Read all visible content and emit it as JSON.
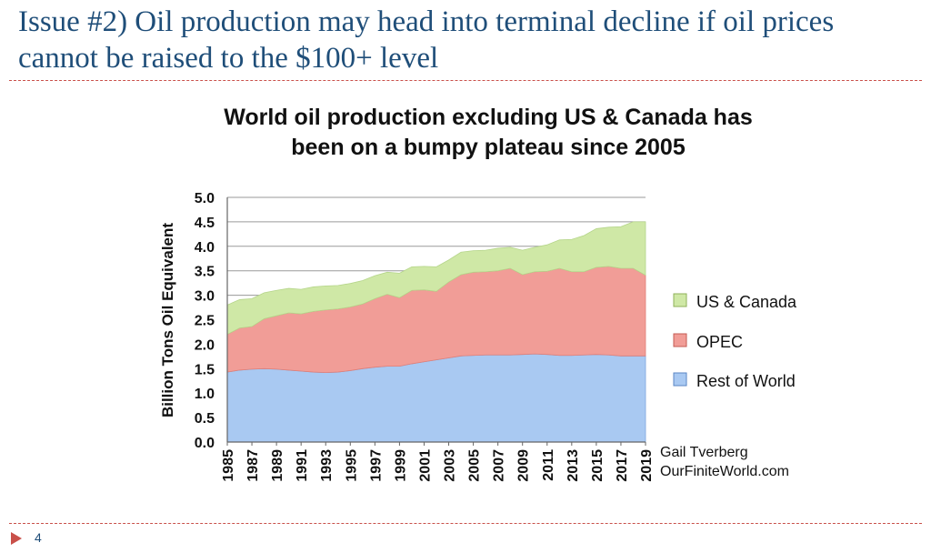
{
  "slide": {
    "title": "Issue #2) Oil production may head into terminal decline if oil prices cannot be raised to the $100+ level",
    "page_number": "4",
    "credit_line1": "Gail Tverberg",
    "credit_line2": "OurFiniteWorld.com"
  },
  "colors": {
    "title": "#1f4e79",
    "rule": "#c9504a",
    "rest_of_world": "#a9c9f2",
    "opec": "#f19d97",
    "us_canada": "#cfe8a6"
  },
  "chart_data": {
    "type": "area",
    "stacked": true,
    "title": "World oil production excluding US & Canada has been on a bumpy plateau since 2005",
    "title_lines": [
      "World oil production excluding US & Canada has",
      "been on a bumpy plateau since 2005"
    ],
    "xlabel": "",
    "ylabel": "Billion Tons Oil Equivalent",
    "ylim": [
      0,
      5
    ],
    "yticks": [
      "0.0",
      "0.5",
      "1.0",
      "1.5",
      "2.0",
      "2.5",
      "3.0",
      "3.5",
      "4.0",
      "4.5",
      "5.0"
    ],
    "x": [
      1985,
      1986,
      1987,
      1988,
      1989,
      1990,
      1991,
      1992,
      1993,
      1994,
      1995,
      1996,
      1997,
      1998,
      1999,
      2000,
      2001,
      2002,
      2003,
      2004,
      2005,
      2006,
      2007,
      2008,
      2009,
      2010,
      2011,
      2012,
      2013,
      2014,
      2015,
      2016,
      2017,
      2018,
      2019
    ],
    "xtick_labels": [
      "1985",
      "1987",
      "1989",
      "1991",
      "1993",
      "1995",
      "1997",
      "1999",
      "2001",
      "2003",
      "2005",
      "2007",
      "2009",
      "2011",
      "2013",
      "2015",
      "2017",
      "2019"
    ],
    "grid": true,
    "legend_position": "right",
    "legend_order": [
      "US & Canada",
      "OPEC",
      "Rest of World"
    ],
    "series": [
      {
        "name": "Rest of World",
        "values": [
          1.43,
          1.47,
          1.49,
          1.5,
          1.49,
          1.47,
          1.45,
          1.43,
          1.42,
          1.43,
          1.46,
          1.5,
          1.53,
          1.55,
          1.55,
          1.6,
          1.64,
          1.68,
          1.72,
          1.76,
          1.77,
          1.78,
          1.78,
          1.78,
          1.79,
          1.8,
          1.79,
          1.77,
          1.77,
          1.78,
          1.79,
          1.78,
          1.76,
          1.76,
          1.76
        ]
      },
      {
        "name": "OPEC",
        "values": [
          0.77,
          0.86,
          0.87,
          1.02,
          1.09,
          1.17,
          1.17,
          1.24,
          1.28,
          1.29,
          1.3,
          1.32,
          1.4,
          1.47,
          1.4,
          1.5,
          1.47,
          1.4,
          1.55,
          1.66,
          1.7,
          1.7,
          1.72,
          1.77,
          1.63,
          1.68,
          1.7,
          1.78,
          1.71,
          1.7,
          1.78,
          1.81,
          1.79,
          1.79,
          1.65
        ]
      },
      {
        "name": "US & Canada",
        "values": [
          0.6,
          0.58,
          0.57,
          0.53,
          0.52,
          0.5,
          0.5,
          0.5,
          0.49,
          0.48,
          0.48,
          0.48,
          0.47,
          0.45,
          0.5,
          0.48,
          0.48,
          0.5,
          0.45,
          0.46,
          0.44,
          0.44,
          0.46,
          0.43,
          0.5,
          0.5,
          0.54,
          0.58,
          0.66,
          0.74,
          0.79,
          0.8,
          0.85,
          0.95,
          1.09
        ]
      }
    ]
  }
}
